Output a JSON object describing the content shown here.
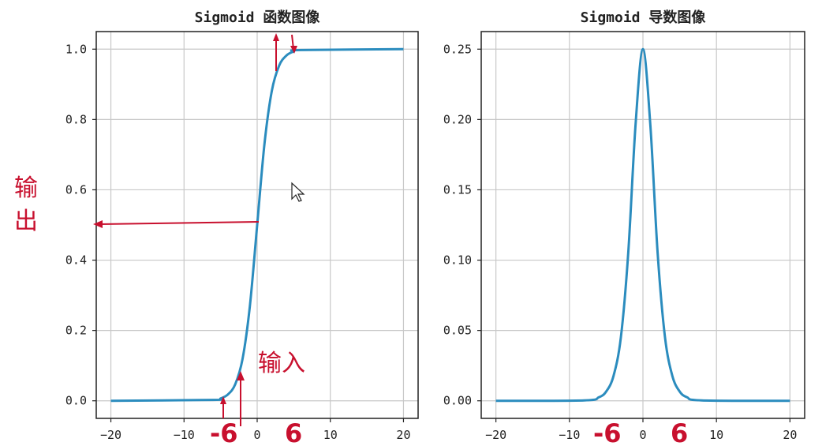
{
  "chart_data": [
    {
      "type": "line",
      "title": "Sigmoid 函数图像",
      "x": [
        -20,
        -6,
        -5,
        -4,
        -3,
        -2,
        -1,
        0,
        1,
        2,
        3,
        4,
        5,
        6,
        20
      ],
      "series": [
        {
          "values": [
            0.0,
            0.0025,
            0.0067,
            0.018,
            0.047,
            0.119,
            0.269,
            0.5,
            0.731,
            0.881,
            0.953,
            0.982,
            0.9933,
            0.9975,
            1.0
          ]
        }
      ],
      "xlim": [
        -22,
        22
      ],
      "ylim": [
        -0.05,
        1.05
      ],
      "x_ticks": [
        "−20",
        "−10",
        "0",
        "10",
        "20"
      ],
      "y_ticks": [
        "0.0",
        "0.2",
        "0.4",
        "0.6",
        "0.8",
        "1.0"
      ],
      "grid": true,
      "annotations": {
        "output_label": "输\n出",
        "input_label": "输入",
        "neg_marker": "-6",
        "pos_marker": "6"
      }
    },
    {
      "type": "line",
      "title": "Sigmoid 导数图像",
      "x": [
        -20,
        -8,
        -6,
        -5,
        -4,
        -3,
        -2,
        -1,
        0,
        1,
        2,
        3,
        4,
        5,
        6,
        8,
        20
      ],
      "series": [
        {
          "values": [
            0.0,
            0.0003,
            0.0025,
            0.0066,
            0.0177,
            0.0452,
            0.105,
            0.1966,
            0.25,
            0.1966,
            0.105,
            0.0452,
            0.0177,
            0.0066,
            0.0025,
            0.0003,
            0.0
          ]
        }
      ],
      "xlim": [
        -22,
        22
      ],
      "ylim": [
        -0.0125,
        0.2625
      ],
      "x_ticks": [
        "−20",
        "−10",
        "0",
        "10",
        "20"
      ],
      "y_ticks": [
        "0.00",
        "0.05",
        "0.10",
        "0.15",
        "0.20",
        "0.25"
      ],
      "grid": true,
      "annotations": {
        "neg_marker": "-6",
        "pos_marker": "6"
      }
    }
  ],
  "colors": {
    "curve": "#2b8cbe",
    "annotation": "#c8102e",
    "grid": "#c8c8c8"
  }
}
